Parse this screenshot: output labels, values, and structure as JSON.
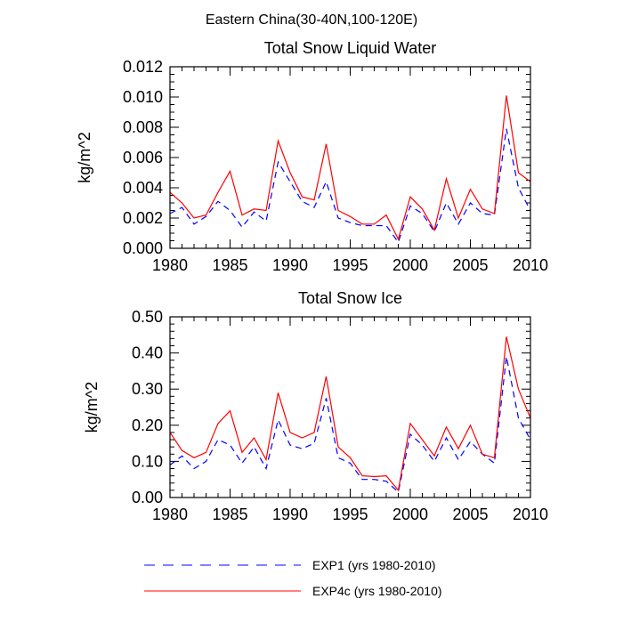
{
  "figure": {
    "title": "Eastern China(30-40N,100-120E)"
  },
  "legend": {
    "placement": "bottom-left",
    "items": [
      {
        "label": "EXP1 (yrs 1980-2010)",
        "color": "#0000ff",
        "style": "dashed"
      },
      {
        "label": "EXP4c (yrs 1980-2010)",
        "color": "#ff0000",
        "style": "solid"
      }
    ]
  },
  "chart_data": [
    {
      "type": "line",
      "title": "Total Snow Liquid Water",
      "ylabel": "kg/m^2",
      "xlabel": "",
      "xlim": [
        1980,
        2010
      ],
      "ylim": [
        0,
        0.012
      ],
      "xticks": [
        "1980",
        "1985",
        "1990",
        "1995",
        "2000",
        "2005",
        "2010"
      ],
      "yticks": [
        "0.000",
        "0.002",
        "0.004",
        "0.006",
        "0.008",
        "0.010",
        "0.012"
      ],
      "x": [
        1980,
        1981,
        1982,
        1983,
        1984,
        1985,
        1986,
        1987,
        1988,
        1989,
        1990,
        1991,
        1992,
        1993,
        1994,
        1995,
        1996,
        1997,
        1998,
        1999,
        2000,
        2001,
        2002,
        2003,
        2004,
        2005,
        2006,
        2007,
        2008,
        2009,
        2010
      ],
      "series": [
        {
          "name": "EXP1 (yrs 1980-2010)",
          "color": "#0000ff",
          "style": "dashed",
          "values": [
            0.0023,
            0.0027,
            0.0016,
            0.0021,
            0.0031,
            0.0025,
            0.0014,
            0.0024,
            0.0018,
            0.0057,
            0.0044,
            0.0031,
            0.0027,
            0.0044,
            0.002,
            0.0017,
            0.0015,
            0.0015,
            0.0015,
            0.0004,
            0.0028,
            0.0023,
            0.0011,
            0.003,
            0.0016,
            0.003,
            0.0023,
            0.0022,
            0.0079,
            0.004,
            0.0025
          ]
        },
        {
          "name": "EXP4c (yrs 1980-2010)",
          "color": "#ff0000",
          "style": "solid",
          "values": [
            0.0037,
            0.003,
            0.002,
            0.0022,
            0.0037,
            0.0051,
            0.0022,
            0.0026,
            0.0025,
            0.0071,
            0.005,
            0.0034,
            0.0032,
            0.0069,
            0.0025,
            0.0021,
            0.0016,
            0.0016,
            0.0022,
            0.0006,
            0.0034,
            0.0026,
            0.0012,
            0.0046,
            0.002,
            0.0039,
            0.0026,
            0.0023,
            0.0101,
            0.005,
            0.0044
          ]
        }
      ]
    },
    {
      "type": "line",
      "title": "Total Snow Ice",
      "ylabel": "kg/m^2",
      "xlabel": "",
      "xlim": [
        1980,
        2010
      ],
      "ylim": [
        0,
        0.5
      ],
      "xticks": [
        "1980",
        "1985",
        "1990",
        "1995",
        "2000",
        "2005",
        "2010"
      ],
      "yticks": [
        "0.00",
        "0.10",
        "0.20",
        "0.30",
        "0.40",
        "0.50"
      ],
      "x": [
        1980,
        1981,
        1982,
        1983,
        1984,
        1985,
        1986,
        1987,
        1988,
        1989,
        1990,
        1991,
        1992,
        1993,
        1994,
        1995,
        1996,
        1997,
        1998,
        1999,
        2000,
        2001,
        2002,
        2003,
        2004,
        2005,
        2006,
        2007,
        2008,
        2009,
        2010
      ],
      "series": [
        {
          "name": "EXP1 (yrs 1980-2010)",
          "color": "#0000ff",
          "style": "dashed",
          "values": [
            0.09,
            0.115,
            0.08,
            0.1,
            0.16,
            0.145,
            0.095,
            0.14,
            0.08,
            0.215,
            0.145,
            0.135,
            0.15,
            0.275,
            0.11,
            0.095,
            0.05,
            0.05,
            0.045,
            0.015,
            0.175,
            0.145,
            0.1,
            0.165,
            0.105,
            0.155,
            0.12,
            0.095,
            0.39,
            0.22,
            0.16
          ]
        },
        {
          "name": "EXP4c (yrs 1980-2010)",
          "color": "#ff0000",
          "style": "solid",
          "values": [
            0.18,
            0.13,
            0.11,
            0.125,
            0.205,
            0.24,
            0.125,
            0.165,
            0.105,
            0.29,
            0.18,
            0.165,
            0.18,
            0.335,
            0.14,
            0.11,
            0.06,
            0.058,
            0.06,
            0.02,
            0.205,
            0.16,
            0.115,
            0.195,
            0.135,
            0.2,
            0.12,
            0.11,
            0.445,
            0.3,
            0.22
          ]
        }
      ]
    }
  ]
}
